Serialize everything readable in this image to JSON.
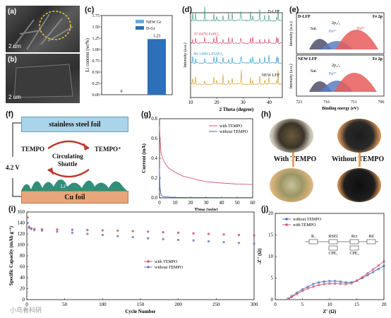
{
  "panels": {
    "a": "(a)",
    "b": "(b)",
    "c": "(c)",
    "d": "(d)",
    "e": "(e)",
    "f": "(f)",
    "g": "(g)",
    "h": "(h)",
    "i": "(i)",
    "j": "(j)"
  },
  "sem": {
    "scale_a": "2 um",
    "scale_b": "2 um"
  },
  "panel_c": {
    "ylabel": "Li content (wt%)",
    "legend": [
      "NEW Gr",
      "D-Gr"
    ],
    "colors": [
      "#6fa8dc",
      "#2d6fb8"
    ]
  },
  "panel_d": {
    "xlabel": "2 Theta (degree)",
    "ylabel": "Intensity (a.u.)",
    "traces": [
      "D-LFP",
      "37-0478 FePO₄",
      "40-1499 LiFePO₄",
      "NEW LFP"
    ],
    "xticks": [
      "10",
      "20",
      "30",
      "40"
    ]
  },
  "panel_e": {
    "xlabel": "Binding energy (eV)",
    "ylabel": "Intensity (a.u.)",
    "top": {
      "name": "D-LFP",
      "sat": "Sat.",
      "p32": "2p₃/₂",
      "fe2": "Fe²⁺",
      "fe3": "Fe³⁺",
      "corner": "Fe 2p"
    },
    "bottom": {
      "name": "NEW LFP",
      "sat": "Sat.",
      "p32": "2p₃/₂",
      "fe2": "Fe²⁺",
      "corner": "Fe 2p"
    },
    "xticks": [
      "721",
      "716",
      "711",
      "706"
    ]
  },
  "panel_f": {
    "top": "stainless steel foil",
    "bottom": "Cu foil",
    "tempo": "TEMPO",
    "tempo_plus": "TEMPO⁺",
    "shuttle1": "Circulating",
    "shuttle2": "Shuttle",
    "voltage": "4.2 V",
    "li": "Li⁰"
  },
  "panel_h": {
    "with_label": "With TEMPO",
    "without_label": "Without TEMPO"
  },
  "watermark": "小鸟看科研",
  "chart_data": [
    {
      "id": "c",
      "type": "bar",
      "categories": [
        "NEW Gr",
        "D-Gr"
      ],
      "values": [
        0,
        1.23
      ],
      "value_labels": [
        "0",
        "1.23"
      ],
      "ylim": [
        0,
        1.75
      ],
      "yticks": [
        "0.00",
        "0.25",
        "0.50",
        "0.75",
        "1.00",
        "1.25",
        "1.50",
        "1.75"
      ],
      "ylabel": "Li content (wt%)"
    },
    {
      "id": "g",
      "type": "line",
      "xlabel": "Time (min)",
      "ylabel": "Current (mA)",
      "xlim": [
        0,
        60
      ],
      "ylim": [
        0,
        0.8
      ],
      "xticks": [
        "0",
        "10",
        "20",
        "30",
        "40",
        "50",
        "60"
      ],
      "yticks": [
        "0.0",
        "0.2",
        "0.4",
        "0.6",
        "0.8"
      ],
      "series": [
        {
          "name": "with TEMPO",
          "color": "#d0546e",
          "x": [
            0,
            0.3,
            1,
            2,
            4,
            6,
            10,
            15,
            20,
            25,
            30,
            40,
            50,
            60
          ],
          "y": [
            0.72,
            0.6,
            0.45,
            0.4,
            0.34,
            0.3,
            0.26,
            0.22,
            0.2,
            0.18,
            0.165,
            0.15,
            0.14,
            0.135
          ]
        },
        {
          "name": "without TEMPO",
          "color": "#4a6fb5",
          "x": [
            0,
            0.3,
            1,
            2,
            4,
            10,
            20,
            30,
            40,
            50,
            60
          ],
          "y": [
            0.3,
            0.1,
            0.03,
            0.015,
            0.01,
            0.005,
            0.004,
            0.004,
            0.003,
            0.003,
            0.003
          ]
        }
      ]
    },
    {
      "id": "i",
      "type": "scatter",
      "xlabel": "Cycle Number",
      "ylabel": "Specific Capacity (mAh g⁻¹)",
      "xlim": [
        0,
        300
      ],
      "ylim": [
        0,
        160
      ],
      "xticks": [
        "0",
        "50",
        "100",
        "150",
        "200",
        "250",
        "300"
      ],
      "yticks": [
        "0",
        "20",
        "40",
        "60",
        "80",
        "100",
        "120",
        "140",
        "160"
      ],
      "series": [
        {
          "name": "with TEMPO",
          "color": "#d0546e",
          "x": [
            1,
            3,
            6,
            10,
            20,
            40,
            60,
            80,
            100,
            120,
            140,
            160,
            180,
            200,
            220,
            240,
            260,
            280,
            300
          ],
          "y": [
            150,
            133,
            130,
            129,
            128.5,
            128,
            127.5,
            127,
            126.5,
            126,
            125,
            124,
            123,
            122,
            121,
            120,
            119,
            118,
            117
          ]
        },
        {
          "name": "without TEMPO",
          "color": "#6a7fc8",
          "x": [
            1,
            3,
            6,
            10,
            20,
            40,
            60,
            80,
            100,
            120,
            140,
            160,
            180,
            200,
            220,
            240,
            260,
            280,
            300
          ],
          "y": [
            140,
            131,
            129,
            127,
            126,
            124,
            122,
            120,
            118,
            116,
            114,
            112,
            110.5,
            109,
            108,
            106.5,
            105,
            103.5,
            102
          ]
        }
      ]
    },
    {
      "id": "j",
      "type": "line",
      "xlabel": "Z' (Ω)",
      "ylabel": "-Z'' (Ω)",
      "xlim": [
        0,
        20
      ],
      "ylim": [
        0,
        20
      ],
      "xticks": [
        "0",
        "5",
        "10",
        "15",
        "20"
      ],
      "yticks": [
        "0",
        "5",
        "10",
        "15",
        "20"
      ],
      "circuit": [
        "R₁",
        "RSEI",
        "CPE₁",
        "Rct",
        "CPE₂",
        "Rd"
      ],
      "series": [
        {
          "name": "without TEMPO",
          "color": "#4a6fb5",
          "x": [
            2.5,
            3,
            4,
            5,
            6,
            7,
            8,
            9,
            10,
            11,
            12,
            13,
            14,
            15,
            16,
            17,
            18,
            19,
            20
          ],
          "y": [
            0.2,
            0.8,
            1.6,
            2.4,
            3.0,
            3.6,
            4.0,
            4.2,
            4.3,
            4.3,
            4.2,
            4.0,
            4.0,
            4.4,
            5.0,
            5.7,
            6.4,
            7.1,
            7.8
          ]
        },
        {
          "name": "with TEMPO",
          "color": "#d0546e",
          "x": [
            2.3,
            3,
            4,
            5,
            6,
            7,
            8,
            9,
            10,
            11,
            12,
            13,
            14,
            15,
            16,
            17,
            18,
            19,
            20
          ],
          "y": [
            0.2,
            0.6,
            1.3,
            2.0,
            2.6,
            3.0,
            3.4,
            3.6,
            3.7,
            3.7,
            3.7,
            3.6,
            3.8,
            4.4,
            5.2,
            6.1,
            7.0,
            7.9,
            8.9
          ]
        }
      ]
    }
  ]
}
